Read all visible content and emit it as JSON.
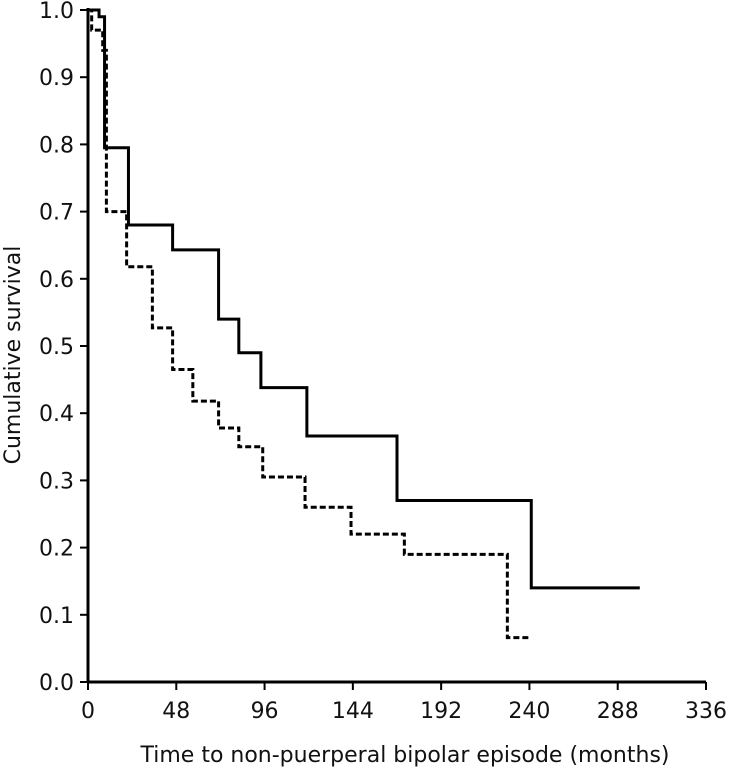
{
  "chart_data": {
    "type": "line",
    "title": "",
    "xlabel": "Time to non-puerperal bipolar episode (months)",
    "ylabel": "Cumulative survival",
    "xlim": [
      0,
      336
    ],
    "ylim": [
      0.0,
      1.0
    ],
    "x_ticks": [
      "0",
      "48",
      "96",
      "144",
      "192",
      "240",
      "288",
      "336"
    ],
    "y_ticks": [
      "0.0",
      "0.1",
      "0.2",
      "0.3",
      "0.4",
      "0.5",
      "0.6",
      "0.7",
      "0.8",
      "0.9",
      "1.0"
    ],
    "grid": false,
    "legend": "none",
    "step": true,
    "series": [
      {
        "style": "solid",
        "color": "#000000",
        "points": [
          [
            0,
            1.0
          ],
          [
            6,
            1.0
          ],
          [
            6,
            0.99
          ],
          [
            9,
            0.99
          ],
          [
            9,
            0.795
          ],
          [
            22,
            0.795
          ],
          [
            22,
            0.68
          ],
          [
            46,
            0.68
          ],
          [
            46,
            0.643
          ],
          [
            71,
            0.643
          ],
          [
            71,
            0.54
          ],
          [
            82,
            0.54
          ],
          [
            82,
            0.49
          ],
          [
            94,
            0.49
          ],
          [
            94,
            0.438
          ],
          [
            119,
            0.438
          ],
          [
            119,
            0.366
          ],
          [
            168,
            0.366
          ],
          [
            168,
            0.27
          ],
          [
            241,
            0.27
          ],
          [
            241,
            0.14
          ],
          [
            300,
            0.14
          ]
        ]
      },
      {
        "style": "dashed",
        "color": "#000000",
        "points": [
          [
            0,
            1.0
          ],
          [
            2,
            1.0
          ],
          [
            2,
            0.97
          ],
          [
            8,
            0.97
          ],
          [
            8,
            0.94
          ],
          [
            10,
            0.94
          ],
          [
            10,
            0.7
          ],
          [
            21,
            0.7
          ],
          [
            21,
            0.618
          ],
          [
            35,
            0.618
          ],
          [
            35,
            0.527
          ],
          [
            46,
            0.527
          ],
          [
            46,
            0.465
          ],
          [
            57,
            0.465
          ],
          [
            57,
            0.418
          ],
          [
            71,
            0.418
          ],
          [
            71,
            0.378
          ],
          [
            82,
            0.378
          ],
          [
            82,
            0.35
          ],
          [
            95,
            0.35
          ],
          [
            95,
            0.305
          ],
          [
            118,
            0.305
          ],
          [
            118,
            0.26
          ],
          [
            143,
            0.26
          ],
          [
            143,
            0.22
          ],
          [
            172,
            0.22
          ],
          [
            172,
            0.19
          ],
          [
            228,
            0.19
          ],
          [
            228,
            0.066
          ],
          [
            240,
            0.066
          ]
        ]
      }
    ]
  }
}
